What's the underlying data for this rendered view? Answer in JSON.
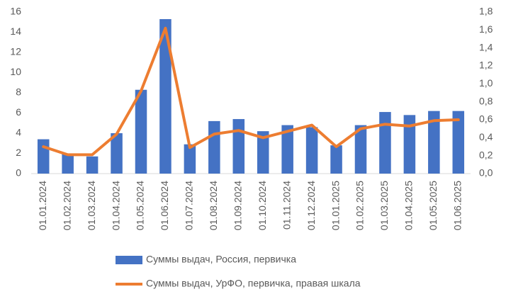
{
  "chart_data": {
    "type": "combo",
    "categories": [
      "01.01.2024",
      "01.02.2024",
      "01.03.2024",
      "01.04.2024",
      "01.05.2024",
      "01.06.2024",
      "01.07.2024",
      "01.08.2024",
      "01.09.2024",
      "01.10.2024",
      "01.11.2024",
      "01.12.2024",
      "01.01.2025",
      "01.02.2025",
      "01.03.2025",
      "01.04.2025",
      "01.05.2025",
      "01.06.2025"
    ],
    "series": [
      {
        "name": "Суммы выдач, Россия, первичка",
        "type": "bar",
        "color": "#4472c4",
        "values": [
          3.4,
          2.0,
          1.7,
          4.0,
          8.3,
          15.3,
          2.9,
          5.2,
          5.4,
          4.2,
          4.8,
          4.6,
          2.8,
          4.8,
          6.1,
          5.8,
          6.2,
          6.2
        ]
      },
      {
        "name": "Суммы выдач, УрФО, первичка, правая шкала",
        "type": "line",
        "color": "#ed7d31",
        "axis": "y2",
        "values": [
          0.3,
          0.21,
          0.21,
          0.44,
          0.92,
          1.62,
          0.29,
          0.44,
          0.48,
          0.4,
          0.47,
          0.54,
          0.3,
          0.5,
          0.55,
          0.53,
          0.59,
          0.6
        ]
      }
    ],
    "ylim": [
      0,
      16
    ],
    "yticks": [
      0,
      2,
      4,
      6,
      8,
      10,
      12,
      14,
      16
    ],
    "y2lim": [
      0,
      1.8
    ],
    "y2ticks": [
      {
        "value": 0,
        "label": "0,0"
      },
      {
        "value": 0.2,
        "label": "0,2"
      },
      {
        "value": 0.4,
        "label": "0,4"
      },
      {
        "value": 0.6,
        "label": "0,6"
      },
      {
        "value": 0.8,
        "label": "0,8"
      },
      {
        "value": 1.0,
        "label": "1,0"
      },
      {
        "value": 1.2,
        "label": "1,2"
      },
      {
        "value": 1.4,
        "label": "1,4"
      },
      {
        "value": 1.6,
        "label": "1,6"
      },
      {
        "value": 1.8,
        "label": "1,8"
      }
    ],
    "grid": false,
    "legend": "bottom"
  }
}
